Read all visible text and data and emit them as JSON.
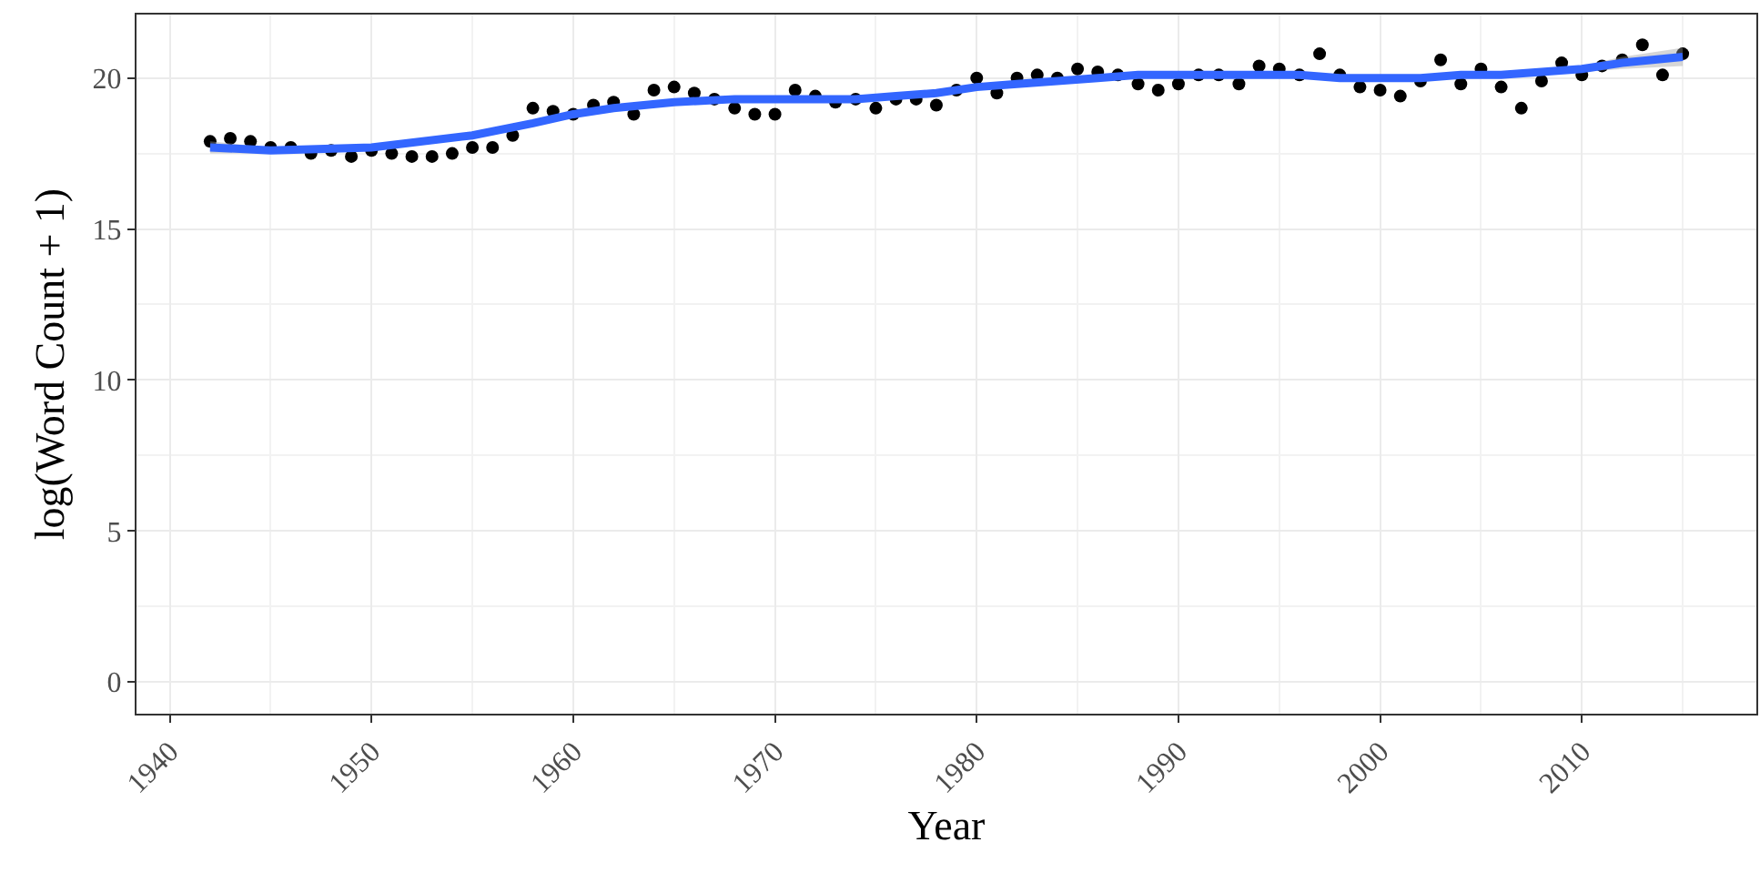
{
  "chart_data": {
    "type": "scatter",
    "xlabel": "Year",
    "ylabel": "log(Word Count + 1)",
    "xlim": [
      1938.35,
      2018.65
    ],
    "ylim": [
      -1.05,
      22.1
    ],
    "xticks": [
      1940,
      1950,
      1960,
      1970,
      1980,
      1990,
      2000,
      2010
    ],
    "yticks": [
      0,
      5,
      10,
      15,
      20
    ],
    "grid": true,
    "series": [
      {
        "color": "#000000",
        "marker": "circle",
        "x": [
          1942,
          1943,
          1944,
          1945,
          1946,
          1947,
          1948,
          1949,
          1950,
          1951,
          1952,
          1953,
          1954,
          1955,
          1956,
          1957,
          1958,
          1959,
          1960,
          1961,
          1962,
          1963,
          1964,
          1965,
          1966,
          1967,
          1968,
          1969,
          1970,
          1971,
          1972,
          1973,
          1974,
          1975,
          1976,
          1977,
          1978,
          1979,
          1980,
          1981,
          1982,
          1983,
          1984,
          1985,
          1986,
          1987,
          1988,
          1989,
          1990,
          1991,
          1992,
          1993,
          1994,
          1995,
          1996,
          1997,
          1998,
          1999,
          2000,
          2001,
          2002,
          2003,
          2004,
          2005,
          2006,
          2007,
          2008,
          2009,
          2010,
          2011,
          2012,
          2013,
          2014,
          2015
        ],
        "values": [
          17.9,
          18.0,
          17.9,
          17.7,
          17.7,
          17.5,
          17.6,
          17.4,
          17.6,
          17.5,
          17.4,
          17.4,
          17.5,
          17.7,
          17.7,
          18.1,
          19.0,
          18.9,
          18.8,
          19.1,
          19.2,
          18.8,
          19.6,
          19.7,
          19.5,
          19.3,
          19.0,
          18.8,
          18.8,
          19.6,
          19.4,
          19.2,
          19.3,
          19.0,
          19.3,
          19.3,
          19.1,
          19.6,
          20.0,
          19.5,
          20.0,
          20.1,
          20.0,
          20.3,
          20.2,
          20.1,
          19.8,
          19.6,
          19.8,
          20.1,
          20.1,
          19.8,
          20.4,
          20.3,
          20.1,
          20.8,
          20.1,
          19.7,
          19.6,
          19.4,
          19.9,
          20.6,
          19.8,
          20.3,
          19.7,
          19.0,
          19.9,
          20.5,
          20.1,
          20.4,
          20.6,
          21.1,
          20.1,
          20.8
        ]
      },
      {
        "type": "line",
        "color": "#3366ff",
        "line_style": "solid",
        "x": [
          1942,
          1945,
          1950,
          1955,
          1958,
          1960,
          1962,
          1965,
          1968,
          1970,
          1972,
          1974,
          1976,
          1978,
          1980,
          1982,
          1984,
          1986,
          1988,
          1990,
          1992,
          1994,
          1996,
          1998,
          2000,
          2002,
          2004,
          2006,
          2008,
          2010,
          2012,
          2015
        ],
        "values": [
          17.7,
          17.6,
          17.7,
          18.1,
          18.5,
          18.8,
          19.0,
          19.2,
          19.3,
          19.3,
          19.3,
          19.3,
          19.4,
          19.5,
          19.7,
          19.8,
          19.9,
          20.0,
          20.1,
          20.1,
          20.1,
          20.1,
          20.1,
          20.0,
          20.0,
          20.0,
          20.1,
          20.1,
          20.2,
          20.3,
          20.5,
          20.7
        ],
        "lower": [
          17.5,
          17.5,
          17.6,
          18.0,
          18.4,
          18.7,
          18.9,
          19.1,
          19.2,
          19.2,
          19.2,
          19.2,
          19.3,
          19.4,
          19.6,
          19.7,
          19.8,
          19.9,
          20.0,
          20.0,
          20.0,
          20.0,
          20.0,
          19.9,
          19.9,
          19.9,
          20.0,
          20.0,
          20.1,
          20.2,
          20.3,
          20.4
        ],
        "upper": [
          17.9,
          17.7,
          17.8,
          18.2,
          18.6,
          18.9,
          19.1,
          19.3,
          19.4,
          19.4,
          19.4,
          19.4,
          19.5,
          19.6,
          19.8,
          19.9,
          20.0,
          20.1,
          20.2,
          20.2,
          20.2,
          20.2,
          20.2,
          20.1,
          20.1,
          20.1,
          20.2,
          20.2,
          20.3,
          20.4,
          20.7,
          21.0
        ]
      }
    ]
  }
}
